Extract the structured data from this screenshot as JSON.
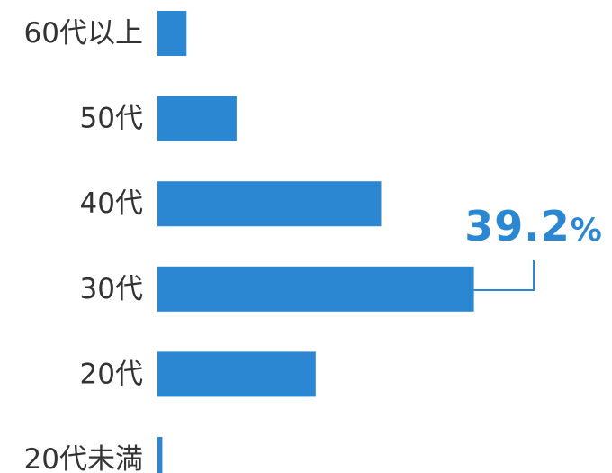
{
  "chart_data": {
    "type": "bar",
    "orientation": "horizontal",
    "categories": [
      "60代以上",
      "50代",
      "40代",
      "30代",
      "20代",
      "20代未満"
    ],
    "values": [
      3.6,
      9.8,
      27.7,
      39.2,
      19.6,
      0.6
    ],
    "unit": "%",
    "title": "",
    "xlabel": "",
    "ylabel": "",
    "xlim": [
      0,
      40
    ],
    "grid": false,
    "legend": "none",
    "bar_color": "#2b87d1",
    "annotation": {
      "category": "30代",
      "number": "39.2",
      "unit": "%",
      "color": "#2b87d1"
    }
  }
}
